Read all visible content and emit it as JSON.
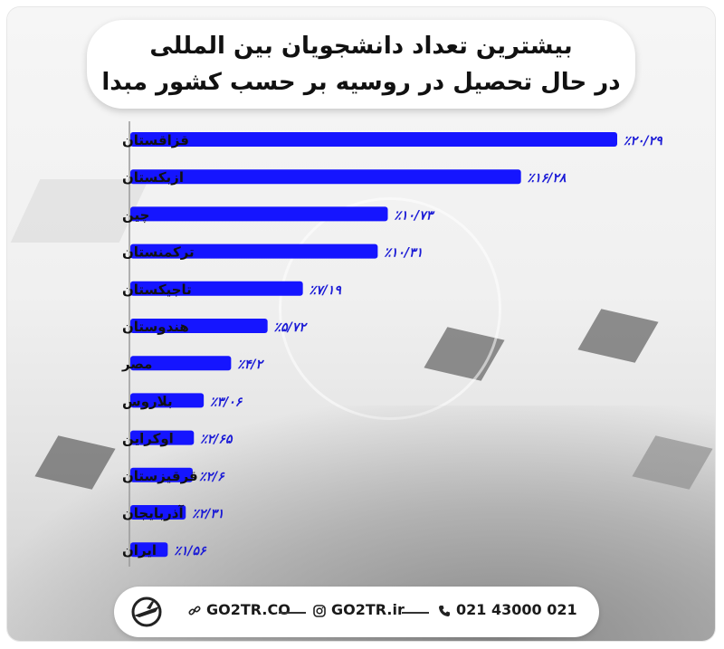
{
  "title": {
    "line1": "بیشترین تعداد دانشجویان بین المللی",
    "line2": "در حال تحصیل در روسیه بر حسب کشور مبدا"
  },
  "chart_data": {
    "type": "bar",
    "orientation": "horizontal",
    "categories": [
      "قزاقستان",
      "ازبکستان",
      "چین",
      "ترکمنستان",
      "تاجیکستان",
      "هندوستان",
      "مصر",
      "بلاروس",
      "اوکراین",
      "قرقیزستان",
      "آذربایجان",
      "ایران"
    ],
    "values": [
      20.29,
      16.28,
      10.73,
      10.31,
      7.19,
      5.72,
      4.2,
      3.06,
      2.65,
      2.6,
      2.31,
      1.56
    ],
    "value_labels": [
      "٪۲۰/۲۹",
      "٪۱۶/۲۸",
      "٪۱۰/۷۳",
      "٪۱۰/۳۱",
      "٪۷/۱۹",
      "٪۵/۷۲",
      "٪۴/۲",
      "٪۳/۰۶",
      "٪۲/۶۵",
      "٪۲/۶",
      "٪۲/۳۱",
      "٪۱/۵۶"
    ],
    "bar_color": "#1515ff",
    "label_color": "#1a1ad6",
    "grid": false,
    "legend": "none"
  },
  "footer": {
    "website": "GO2TR.CO",
    "instagram": "GO2TR.ir",
    "phone": "021 43000 021",
    "icons": [
      "link-icon",
      "instagram-icon",
      "phone-icon"
    ]
  }
}
